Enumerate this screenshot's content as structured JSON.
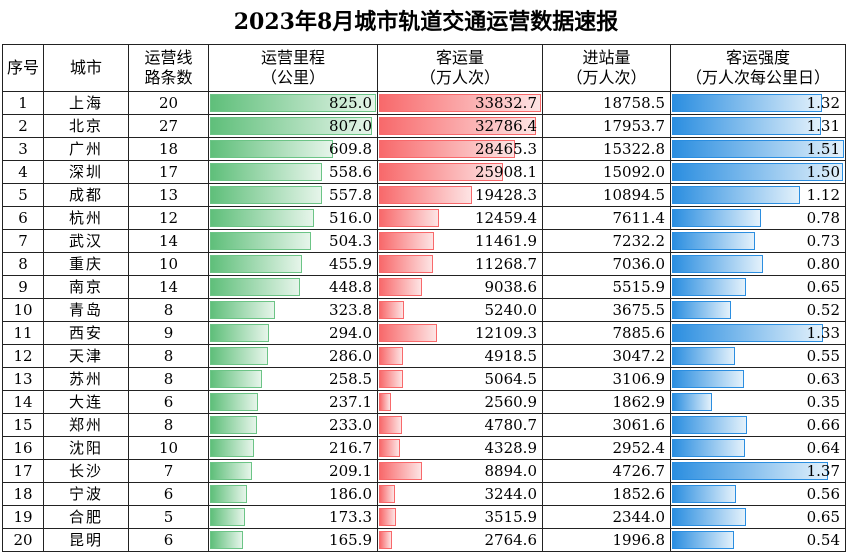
{
  "title": "2023年8月城市轨道交通运营数据速报",
  "headers": {
    "seq": "序号",
    "city": "城市",
    "lines_1": "运营线",
    "lines_2": "路条数",
    "mileage_1": "运营里程",
    "mileage_2": "（公里）",
    "passengers_1": "客运量",
    "passengers_2": "（万人次）",
    "entries_1": "进站量",
    "entries_2": "（万人次）",
    "intensity_1": "客运强度",
    "intensity_2": "（万人次每公里日）"
  },
  "bar_colors": {
    "mileage": "#63be7b",
    "passengers": "#f8696b",
    "intensity": "#2b8ee0"
  },
  "rows": [
    {
      "seq": "1",
      "city": "上海",
      "lines": "20",
      "mileage": "825.0",
      "passengers": "33832.7",
      "entries": "18758.5",
      "intensity": "1.32"
    },
    {
      "seq": "2",
      "city": "北京",
      "lines": "27",
      "mileage": "807.0",
      "passengers": "32786.4",
      "entries": "17953.7",
      "intensity": "1.31"
    },
    {
      "seq": "3",
      "city": "广州",
      "lines": "18",
      "mileage": "609.8",
      "passengers": "28465.3",
      "entries": "15322.8",
      "intensity": "1.51"
    },
    {
      "seq": "4",
      "city": "深圳",
      "lines": "17",
      "mileage": "558.6",
      "passengers": "25908.1",
      "entries": "15092.0",
      "intensity": "1.50"
    },
    {
      "seq": "5",
      "city": "成都",
      "lines": "13",
      "mileage": "557.8",
      "passengers": "19428.3",
      "entries": "10894.5",
      "intensity": "1.12"
    },
    {
      "seq": "6",
      "city": "杭州",
      "lines": "12",
      "mileage": "516.0",
      "passengers": "12459.4",
      "entries": "7611.4",
      "intensity": "0.78"
    },
    {
      "seq": "7",
      "city": "武汉",
      "lines": "14",
      "mileage": "504.3",
      "passengers": "11461.9",
      "entries": "7232.2",
      "intensity": "0.73"
    },
    {
      "seq": "8",
      "city": "重庆",
      "lines": "10",
      "mileage": "455.9",
      "passengers": "11268.7",
      "entries": "7036.0",
      "intensity": "0.80"
    },
    {
      "seq": "9",
      "city": "南京",
      "lines": "14",
      "mileage": "448.8",
      "passengers": "9038.6",
      "entries": "5515.9",
      "intensity": "0.65"
    },
    {
      "seq": "10",
      "city": "青岛",
      "lines": "8",
      "mileage": "323.8",
      "passengers": "5240.0",
      "entries": "3675.5",
      "intensity": "0.52"
    },
    {
      "seq": "11",
      "city": "西安",
      "lines": "9",
      "mileage": "294.0",
      "passengers": "12109.3",
      "entries": "7885.6",
      "intensity": "1.33"
    },
    {
      "seq": "12",
      "city": "天津",
      "lines": "8",
      "mileage": "286.0",
      "passengers": "4918.5",
      "entries": "3047.2",
      "intensity": "0.55"
    },
    {
      "seq": "13",
      "city": "苏州",
      "lines": "8",
      "mileage": "258.5",
      "passengers": "5064.5",
      "entries": "3106.9",
      "intensity": "0.63"
    },
    {
      "seq": "14",
      "city": "大连",
      "lines": "6",
      "mileage": "237.1",
      "passengers": "2560.9",
      "entries": "1862.9",
      "intensity": "0.35"
    },
    {
      "seq": "15",
      "city": "郑州",
      "lines": "8",
      "mileage": "233.0",
      "passengers": "4780.7",
      "entries": "3061.6",
      "intensity": "0.66"
    },
    {
      "seq": "16",
      "city": "沈阳",
      "lines": "10",
      "mileage": "216.7",
      "passengers": "4328.9",
      "entries": "2952.4",
      "intensity": "0.64"
    },
    {
      "seq": "17",
      "city": "长沙",
      "lines": "7",
      "mileage": "209.1",
      "passengers": "8894.0",
      "entries": "4726.7",
      "intensity": "1.37"
    },
    {
      "seq": "18",
      "city": "宁波",
      "lines": "6",
      "mileage": "186.0",
      "passengers": "3244.0",
      "entries": "1852.6",
      "intensity": "0.56"
    },
    {
      "seq": "19",
      "city": "合肥",
      "lines": "5",
      "mileage": "173.3",
      "passengers": "3515.9",
      "entries": "2344.0",
      "intensity": "0.65"
    },
    {
      "seq": "20",
      "city": "昆明",
      "lines": "6",
      "mileage": "165.9",
      "passengers": "2764.6",
      "entries": "1996.8",
      "intensity": "0.54"
    }
  ]
}
